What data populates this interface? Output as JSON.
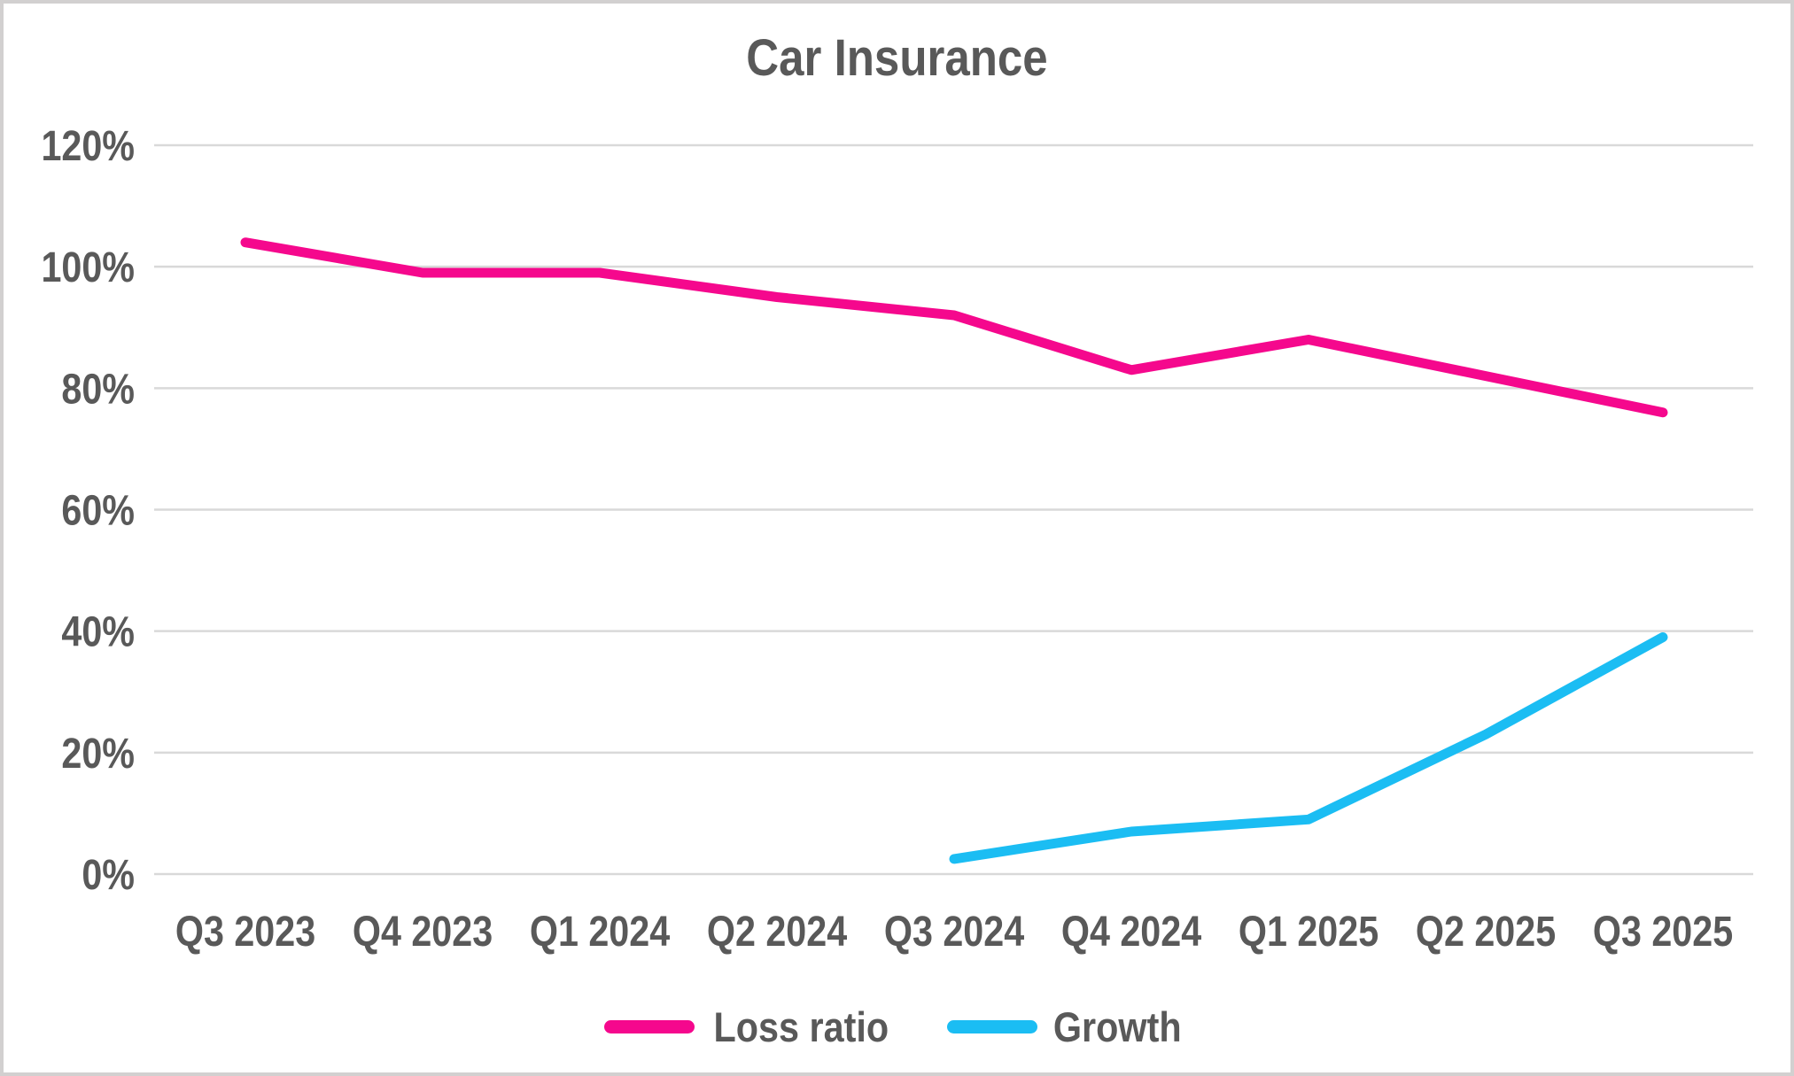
{
  "window": {
    "background_color": "#FFFFFF",
    "frame_border_color": "#D2D0D0"
  },
  "chart_data": {
    "type": "line",
    "title": "Car Insurance",
    "categories": [
      "Q3 2023",
      "Q4 2023",
      "Q1 2024",
      "Q2 2024",
      "Q3 2024",
      "Q4 2024",
      "Q1 2025",
      "Q2 2025",
      "Q3 2025"
    ],
    "series": [
      {
        "name": "Loss ratio",
        "color": "#F5088D",
        "values": [
          104,
          99,
          99,
          95,
          92,
          83,
          88,
          82,
          76
        ]
      },
      {
        "name": "Growth",
        "color": "#1BBDF3",
        "values": [
          null,
          null,
          null,
          null,
          2.5,
          7,
          9,
          23,
          39
        ]
      }
    ],
    "y_axis": {
      "min": 0,
      "max": 120,
      "step": 20,
      "unit": "%",
      "tick_labels": [
        "0%",
        "20%",
        "40%",
        "60%",
        "80%",
        "100%",
        "120%"
      ]
    },
    "x_axis": {
      "tick_labels": [
        "Q3 2023",
        "Q4 2023",
        "Q1 2024",
        "Q2 2024",
        "Q3 2024",
        "Q4 2024",
        "Q1 2025",
        "Q2 2025",
        "Q3 2025"
      ]
    },
    "gridlines": true,
    "gridline_color": "#D9D9D9",
    "text_color": "#595959",
    "legend_position": "bottom",
    "line_width": 11
  }
}
